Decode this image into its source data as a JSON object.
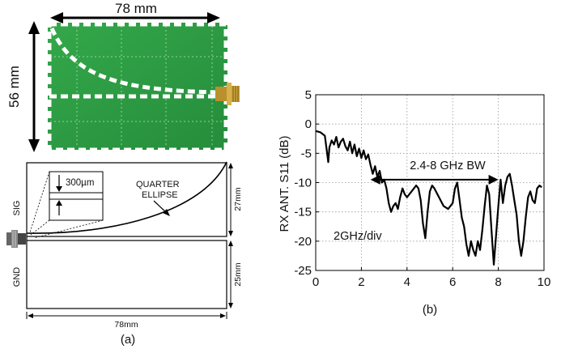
{
  "panel_a": {
    "photo_width_label": "78 mm",
    "photo_height_label": "56 mm",
    "gap_label": "300µm",
    "curve_label_line1": "QUARTER",
    "curve_label_line2": "ELLIPSE",
    "sig_label": "SIG",
    "gnd_label": "GND",
    "upper_height_label": "27mm",
    "lower_height_label": "25mm",
    "width_label": "78mm",
    "caption": "(a)"
  },
  "panel_b": {
    "caption": "(b)",
    "annotation_bw": "2.4-8 GHz BW",
    "annotation_div": "2GHz/div",
    "colors": {
      "trace": "#000000",
      "grid": "#9a9a9a"
    }
  },
  "chart_data": {
    "type": "line",
    "title": "",
    "xlabel": "",
    "ylabel": "RX ANT. S11 (dB)",
    "xlim": [
      0,
      10
    ],
    "ylim": [
      -25,
      5
    ],
    "xticks": [
      0,
      2,
      4,
      6,
      8,
      10
    ],
    "yticks": [
      5,
      0,
      -5,
      -10,
      -15,
      -20,
      -25
    ],
    "grid": true,
    "series": [
      {
        "x": [
          0,
          0.2,
          0.4,
          0.5,
          0.55,
          0.6,
          0.7,
          0.8,
          0.9,
          1.0,
          1.1,
          1.2,
          1.3,
          1.4,
          1.5,
          1.6,
          1.7,
          1.8,
          1.9,
          2.0,
          2.1,
          2.2,
          2.3,
          2.4,
          2.5,
          2.6,
          2.7,
          2.8,
          2.9,
          3.0,
          3.1,
          3.2,
          3.3,
          3.4,
          3.5,
          3.6,
          3.7,
          3.8,
          3.9,
          4.0,
          4.2,
          4.4,
          4.5,
          4.6,
          4.7,
          4.8,
          4.9,
          5.0,
          5.1,
          5.2,
          5.4,
          5.6,
          5.8,
          6.0,
          6.1,
          6.2,
          6.3,
          6.4,
          6.5,
          6.6,
          6.7,
          6.8,
          6.9,
          7.0,
          7.1,
          7.2,
          7.3,
          7.4,
          7.5,
          7.6,
          7.7,
          7.8,
          7.9,
          8.0,
          8.1,
          8.2,
          8.3,
          8.4,
          8.5,
          8.6,
          8.7,
          8.8,
          8.9,
          9.0,
          9.1,
          9.2,
          9.3,
          9.4,
          9.5,
          9.6,
          9.7,
          9.8,
          9.9
        ],
        "y": [
          -1.2,
          -1.4,
          -2.0,
          -5.0,
          -6.5,
          -4.0,
          -2.8,
          -3.5,
          -2.2,
          -4.0,
          -3.0,
          -2.5,
          -3.8,
          -4.5,
          -3.0,
          -5.0,
          -3.5,
          -5.5,
          -4.2,
          -5.8,
          -4.5,
          -6.0,
          -5.2,
          -7.0,
          -8.5,
          -7.2,
          -9.0,
          -8.0,
          -10.0,
          -9.5,
          -11.0,
          -13.5,
          -15.0,
          -14.0,
          -13.5,
          -14.5,
          -12.5,
          -11.0,
          -12.0,
          -12.5,
          -11.5,
          -10.5,
          -11.0,
          -13.0,
          -17.0,
          -19.5,
          -15.0,
          -11.5,
          -10.5,
          -11.0,
          -12.5,
          -14.0,
          -14.5,
          -13.5,
          -11.0,
          -10.0,
          -13.0,
          -16.0,
          -17.5,
          -20.5,
          -22.5,
          -20.0,
          -21.5,
          -22.5,
          -20.0,
          -21.5,
          -18.0,
          -14.0,
          -10.5,
          -12.0,
          -18.0,
          -24.0,
          -19.0,
          -14.0,
          -9.5,
          -13.5,
          -10.5,
          -9.0,
          -8.5,
          -10.5,
          -13.0,
          -15.5,
          -20.0,
          -22.5,
          -20.0,
          -16.0,
          -12.5,
          -11.5,
          -13.0,
          -13.5,
          -11.0,
          -10.5,
          -10.8
        ]
      }
    ]
  }
}
